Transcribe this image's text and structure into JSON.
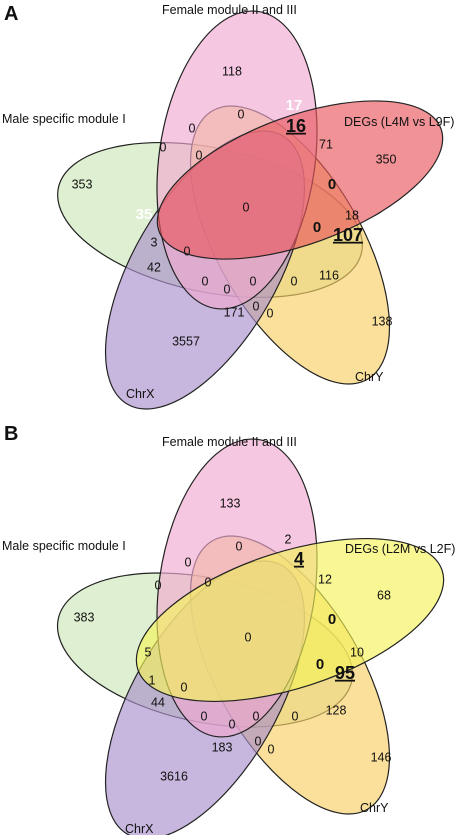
{
  "panels": [
    {
      "letter": "A",
      "sets": {
        "female": {
          "label": "Female module II and III",
          "color": "#f0a9cf"
        },
        "degs": {
          "label": "DEGs (L4M vs L9F)",
          "color": "#e8575e"
        },
        "male": {
          "label": "Male specific module I",
          "color": "#cde8b8"
        },
        "chrx": {
          "label": "ChrX",
          "color": "#a98fcb"
        },
        "chry": {
          "label": "ChrY",
          "color": "#f7cf66"
        }
      },
      "counts": [
        {
          "id": "a-female-only",
          "text": "118",
          "style": "normal"
        },
        {
          "id": "a-degs-only",
          "text": "350",
          "style": "normal"
        },
        {
          "id": "a-male-only",
          "text": "353",
          "style": "normal"
        },
        {
          "id": "a-chrx-only",
          "text": "3557",
          "style": "normal"
        },
        {
          "id": "a-chry-only",
          "text": "138",
          "style": "normal"
        },
        {
          "id": "a-center",
          "text": "0",
          "style": "normal"
        },
        {
          "id": "a-f-d-17",
          "text": "17",
          "style": "white-bold"
        },
        {
          "id": "a-f-d-16",
          "text": "16",
          "style": "big-underline"
        },
        {
          "id": "a-71",
          "text": "71",
          "style": "normal"
        },
        {
          "id": "a-bold-0-1",
          "text": "0",
          "style": "bold"
        },
        {
          "id": "a-bold-0-2",
          "text": "0",
          "style": "bold"
        },
        {
          "id": "a-18",
          "text": "18",
          "style": "normal"
        },
        {
          "id": "a-107",
          "text": "107",
          "style": "big-underline"
        },
        {
          "id": "a-116",
          "text": "116",
          "style": "normal"
        },
        {
          "id": "a-35",
          "text": "35",
          "style": "white-bold"
        },
        {
          "id": "a-3",
          "text": "3",
          "style": "normal"
        },
        {
          "id": "a-42",
          "text": "42",
          "style": "normal"
        },
        {
          "id": "a-171",
          "text": "171",
          "style": "normal"
        },
        {
          "id": "a-0-top",
          "text": "0",
          "style": "normal"
        },
        {
          "id": "a-0-left1",
          "text": "0",
          "style": "normal"
        },
        {
          "id": "a-0-left2",
          "text": "0",
          "style": "normal"
        },
        {
          "id": "a-0-left3",
          "text": "0",
          "style": "normal"
        },
        {
          "id": "a-0-left4",
          "text": "0",
          "style": "normal"
        },
        {
          "id": "a-0-bot1",
          "text": "0",
          "style": "normal"
        },
        {
          "id": "a-0-bot2",
          "text": "0",
          "style": "normal"
        },
        {
          "id": "a-0-bot3",
          "text": "0",
          "style": "normal"
        },
        {
          "id": "a-0-bot4",
          "text": "0",
          "style": "normal"
        },
        {
          "id": "a-0-bot5",
          "text": "0",
          "style": "normal"
        },
        {
          "id": "a-0-bot6",
          "text": "0",
          "style": "normal"
        }
      ]
    },
    {
      "letter": "B",
      "sets": {
        "female": {
          "label": "Female module II and III",
          "color": "#f0a9cf"
        },
        "degs": {
          "label": "DEGs (L2M vs L2F)",
          "color": "#f4f25a"
        },
        "male": {
          "label": "Male specific module I",
          "color": "#cde8b8"
        },
        "chrx": {
          "label": "ChrX",
          "color": "#a98fcb"
        },
        "chry": {
          "label": "ChrY",
          "color": "#f7cf66"
        }
      },
      "counts": [
        {
          "id": "b-female-only",
          "text": "133",
          "style": "normal"
        },
        {
          "id": "b-degs-only",
          "text": "68",
          "style": "normal"
        },
        {
          "id": "b-male-only",
          "text": "383",
          "style": "normal"
        },
        {
          "id": "b-chrx-only",
          "text": "3616",
          "style": "normal"
        },
        {
          "id": "b-chry-only",
          "text": "146",
          "style": "normal"
        },
        {
          "id": "b-center",
          "text": "0",
          "style": "normal"
        },
        {
          "id": "b-2",
          "text": "2",
          "style": "normal"
        },
        {
          "id": "b-4",
          "text": "4",
          "style": "big-underline"
        },
        {
          "id": "b-12",
          "text": "12",
          "style": "normal"
        },
        {
          "id": "b-bold-0-1",
          "text": "0",
          "style": "bold"
        },
        {
          "id": "b-bold-0-2",
          "text": "0",
          "style": "bold"
        },
        {
          "id": "b-10",
          "text": "10",
          "style": "normal"
        },
        {
          "id": "b-95",
          "text": "95",
          "style": "big-underline"
        },
        {
          "id": "b-128",
          "text": "128",
          "style": "normal"
        },
        {
          "id": "b-5",
          "text": "5",
          "style": "normal"
        },
        {
          "id": "b-1",
          "text": "1",
          "style": "normal"
        },
        {
          "id": "b-44",
          "text": "44",
          "style": "normal"
        },
        {
          "id": "b-183",
          "text": "183",
          "style": "normal"
        },
        {
          "id": "b-0-top",
          "text": "0",
          "style": "normal"
        },
        {
          "id": "b-0-left1",
          "text": "0",
          "style": "normal"
        },
        {
          "id": "b-0-left2",
          "text": "0",
          "style": "normal"
        },
        {
          "id": "b-0-left3",
          "text": "0",
          "style": "normal"
        },
        {
          "id": "b-0-left4",
          "text": "0",
          "style": "normal"
        },
        {
          "id": "b-0-bot1",
          "text": "0",
          "style": "normal"
        },
        {
          "id": "b-0-bot2",
          "text": "0",
          "style": "normal"
        },
        {
          "id": "b-0-bot3",
          "text": "0",
          "style": "normal"
        },
        {
          "id": "b-0-bot4",
          "text": "0",
          "style": "normal"
        },
        {
          "id": "b-0-bot5",
          "text": "0",
          "style": "normal"
        },
        {
          "id": "b-0-bot6",
          "text": "0",
          "style": "normal"
        }
      ]
    }
  ]
}
